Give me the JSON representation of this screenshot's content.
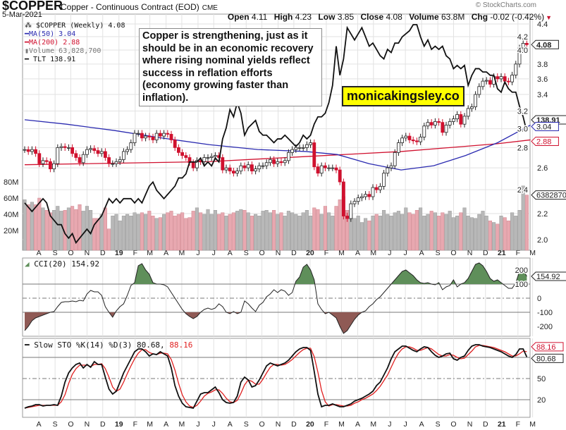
{
  "header": {
    "symbol": "$COPPER",
    "description": "Copper - Continuous Contract (EOD)",
    "exchange": "CME",
    "date": "5-Mar-2021",
    "open_label": "Open",
    "open": "4.11",
    "high_label": "High",
    "high": "4.23",
    "low_label": "Low",
    "low": "3.85",
    "close_label": "Close",
    "close": "4.08",
    "volume_label": "Volume",
    "volume": "63.8M",
    "chg_label": "Chg",
    "chg": "-0.02 (-0.42%)",
    "watermark": "© StockCharts.com"
  },
  "legend": {
    "main": "$COPPER (Weekly) 4.08",
    "ma50": "MA(50) 3.04",
    "ma200": "MA(200) 2.88",
    "volume": "Volume 63,828,700",
    "tlt": "TLT 138.91",
    "cci": "CCI(20) 154.92",
    "sto": "Slow STO %K(14) %D(3) 80.68,",
    "sto_d": "88.16"
  },
  "annotation": "Copper is strengthening, just as it should be in an economic recovery where rising nominal yields reflect success in reflation efforts (economy growing faster than inflation).",
  "logo": "monicakingsley.co",
  "colors": {
    "up": "#ffffff",
    "down": "#d0102e",
    "ma50": "#2a2ab0",
    "ma200": "#d0102e",
    "tlt": "#111111",
    "vol_up": "#b8b8b8",
    "vol_down": "#e8a8b0",
    "cci_pos": "#5f8f5a",
    "cci_neg": "#8f5a55",
    "sto_d": "#e02020"
  },
  "chart_data": {
    "type": "candlestick",
    "frequency": "weekly",
    "first_week": "2018-07-13",
    "last_week": "2021-03-05",
    "x_ticks": [
      "A",
      "S",
      "O",
      "N",
      "D",
      "19",
      "F",
      "M",
      "A",
      "M",
      "J",
      "J",
      "A",
      "S",
      "O",
      "N",
      "D",
      "20",
      "F",
      "M",
      "A",
      "M",
      "J",
      "J",
      "A",
      "S",
      "O",
      "N",
      "D",
      "21",
      "F",
      "M"
    ],
    "price_axis": {
      "scale": "log",
      "ticks": [
        "4.4",
        "4.2",
        "4.0",
        "3.8",
        "3.6",
        "3.4",
        "3.2",
        "3.0",
        "2.8",
        "2.6",
        "2.4",
        "2.2",
        "2.0"
      ],
      "range": [
        2.0,
        4.4
      ]
    },
    "volume_axis": {
      "ticks": [
        "80M",
        "60M",
        "40M",
        "20M"
      ]
    },
    "tags": {
      "close": "4.08",
      "tlt": "138.91",
      "ma50": "3.04",
      "ma200": "2.88",
      "volume": "63828700",
      "cci": "154.92",
      "sto_d": "88.16",
      "sto_k": "80.68"
    },
    "close": [
      2.78,
      2.76,
      2.78,
      2.74,
      2.64,
      2.67,
      2.66,
      2.59,
      2.64,
      2.8,
      2.81,
      2.8,
      2.8,
      2.74,
      2.7,
      2.65,
      2.73,
      2.78,
      2.79,
      2.77,
      2.74,
      2.76,
      2.7,
      2.64,
      2.64,
      2.66,
      2.68,
      2.76,
      2.78,
      2.85,
      2.95,
      2.95,
      2.9,
      2.92,
      2.91,
      2.88,
      2.95,
      2.92,
      2.95,
      2.94,
      2.88,
      2.8,
      2.75,
      2.72,
      2.7,
      2.65,
      2.6,
      2.67,
      2.66,
      2.7,
      2.7,
      2.71,
      2.72,
      2.7,
      2.58,
      2.6,
      2.57,
      2.55,
      2.57,
      2.62,
      2.6,
      2.63,
      2.57,
      2.59,
      2.62,
      2.62,
      2.65,
      2.68,
      2.64,
      2.66,
      2.65,
      2.67,
      2.75,
      2.78,
      2.8,
      2.8,
      2.8,
      2.83,
      2.85,
      2.61,
      2.55,
      2.62,
      2.6,
      2.6,
      2.6,
      2.58,
      2.47,
      2.18,
      2.16,
      2.28,
      2.3,
      2.33,
      2.34,
      2.36,
      2.34,
      2.42,
      2.4,
      2.43,
      2.55,
      2.6,
      2.62,
      2.75,
      2.85,
      2.9,
      2.92,
      2.88,
      2.87,
      2.86,
      2.91,
      3.03,
      3.07,
      3.04,
      3.08,
      3.07,
      2.96,
      3.04,
      3.08,
      3.11,
      3.16,
      3.05,
      3.14,
      3.23,
      3.25,
      3.4,
      3.5,
      3.57,
      3.58,
      3.53,
      3.63,
      3.6,
      3.63,
      3.57,
      3.56,
      3.65,
      3.8,
      4.03,
      4.1,
      4.08
    ],
    "volume_millions": [
      58,
      52,
      55,
      52,
      60,
      48,
      45,
      42,
      45,
      50,
      44,
      45,
      48,
      50,
      46,
      52,
      44,
      50,
      45,
      35,
      35,
      40,
      48,
      22,
      38,
      40,
      32,
      38,
      40,
      38,
      42,
      40,
      42,
      40,
      44,
      38,
      35,
      36,
      40,
      42,
      44,
      38,
      40,
      42,
      35,
      36,
      44,
      48,
      42,
      40,
      46,
      40,
      45,
      40,
      42,
      38,
      40,
      42,
      44,
      46,
      45,
      42,
      38,
      40,
      38,
      44,
      45,
      42,
      45,
      40,
      42,
      38,
      44,
      42,
      40,
      38,
      42,
      45,
      38,
      48,
      46,
      40,
      50,
      42,
      38,
      50,
      58,
      62,
      45,
      40,
      35,
      38,
      30,
      35,
      32,
      38,
      40,
      38,
      45,
      40,
      38,
      42,
      44,
      40,
      48,
      42,
      40,
      45,
      48,
      38,
      40,
      44,
      42,
      38,
      42,
      40,
      44,
      36,
      38,
      42,
      48,
      38,
      36,
      35,
      40,
      44,
      38,
      32,
      30,
      28,
      38,
      36,
      32,
      42,
      38,
      45,
      75,
      63.8
    ],
    "ma50": [
      [
        "2018-07-13",
        3.1
      ],
      [
        "2018-10-01",
        3.05
      ],
      [
        "2019-01-01",
        2.98
      ],
      [
        "2019-04-01",
        2.9
      ],
      [
        "2019-07-01",
        2.83
      ],
      [
        "2019-10-01",
        2.78
      ],
      [
        "2020-01-01",
        2.76
      ],
      [
        "2020-03-01",
        2.73
      ],
      [
        "2020-05-01",
        2.64
      ],
      [
        "2020-07-01",
        2.58
      ],
      [
        "2020-09-01",
        2.62
      ],
      [
        "2020-11-01",
        2.72
      ],
      [
        "2021-01-01",
        2.85
      ],
      [
        "2021-03-05",
        3.04
      ]
    ],
    "ma200": [
      [
        "2018-07-13",
        2.63
      ],
      [
        "2019-07-01",
        2.66
      ],
      [
        "2020-01-01",
        2.71
      ],
      [
        "2020-07-01",
        2.76
      ],
      [
        "2021-01-01",
        2.84
      ],
      [
        "2021-03-05",
        2.88
      ]
    ],
    "tlt": [
      121,
      120,
      119,
      120,
      121,
      122,
      121,
      118,
      117,
      116,
      116,
      114,
      113,
      114,
      112,
      113,
      114,
      115,
      114,
      116,
      117,
      118,
      120,
      122,
      121,
      122,
      121,
      122,
      122,
      122,
      121,
      122,
      121,
      123,
      125,
      126,
      124,
      123,
      122,
      123,
      124,
      125,
      127,
      127,
      128,
      131,
      131,
      131,
      132,
      130,
      131,
      130,
      132,
      131,
      137,
      140,
      145,
      143,
      147,
      144,
      138,
      140,
      141,
      142,
      139,
      138,
      138,
      137,
      136,
      137,
      137,
      138,
      137,
      136,
      135,
      136,
      138,
      137,
      138,
      141,
      143,
      143,
      144,
      147,
      152,
      164,
      155,
      160,
      170,
      168,
      166,
      168,
      170,
      167,
      164,
      165,
      163,
      161,
      160,
      163,
      162,
      165,
      165,
      167,
      168,
      169,
      171,
      171,
      167,
      164,
      166,
      163,
      164,
      163,
      164,
      161,
      160,
      157,
      158,
      157,
      158,
      152,
      155,
      157,
      157,
      156,
      156,
      155,
      155,
      151,
      150,
      153,
      151,
      150,
      150,
      146,
      143,
      138.91
    ],
    "cci": {
      "ticks": [
        "200",
        "100",
        "0",
        "-100",
        "-200"
      ],
      "values": [
        -230,
        -200,
        -160,
        -140,
        -130,
        -120,
        -110,
        -100,
        -95,
        -60,
        -30,
        -25,
        -25,
        -20,
        -25,
        -15,
        -20,
        30,
        55,
        45,
        45,
        20,
        -60,
        -100,
        -135,
        -90,
        -60,
        -40,
        20,
        90,
        110,
        230,
        245,
        200,
        170,
        110,
        100,
        100,
        95,
        80,
        40,
        0,
        -40,
        -80,
        -110,
        -130,
        -145,
        -130,
        -100,
        -80,
        -70,
        -80,
        -70,
        -40,
        -60,
        -100,
        -110,
        -95,
        -110,
        -100,
        -20,
        -40,
        -70,
        -95,
        -50,
        -30,
        10,
        30,
        60,
        40,
        60,
        50,
        20,
        40,
        120,
        150,
        220,
        240,
        200,
        130,
        -40,
        -80,
        -110,
        -100,
        -120,
        -140,
        -200,
        -250,
        -230,
        -190,
        -150,
        -120,
        -100,
        -90,
        -60,
        -40,
        -10,
        10,
        40,
        70,
        100,
        130,
        160,
        190,
        200,
        180,
        160,
        130,
        110,
        105,
        110,
        100,
        95,
        110,
        60,
        80,
        90,
        130,
        80,
        100,
        110,
        140,
        190,
        240,
        250,
        230,
        190,
        140,
        120,
        130,
        110,
        90,
        70,
        70,
        110,
        190,
        200,
        154.92
      ]
    },
    "sto": {
      "ticks": [
        "80",
        "50",
        "20"
      ],
      "k": [
        8,
        10,
        11,
        13,
        13,
        11,
        12,
        12,
        13,
        12,
        25,
        45,
        58,
        65,
        70,
        72,
        65,
        70,
        66,
        74,
        70,
        70,
        52,
        35,
        28,
        32,
        45,
        58,
        68,
        78,
        88,
        92,
        92,
        88,
        82,
        85,
        84,
        88,
        85,
        82,
        65,
        40,
        25,
        15,
        10,
        9,
        8,
        18,
        28,
        30,
        30,
        34,
        38,
        30,
        20,
        16,
        15,
        16,
        25,
        45,
        52,
        48,
        38,
        40,
        48,
        58,
        68,
        72,
        70,
        68,
        70,
        72,
        76,
        82,
        88,
        92,
        94,
        94,
        90,
        60,
        28,
        10,
        12,
        12,
        14,
        12,
        10,
        10,
        12,
        14,
        18,
        20,
        22,
        25,
        28,
        32,
        40,
        45,
        55,
        65,
        78,
        88,
        92,
        96,
        96,
        93,
        90,
        88,
        92,
        95,
        94,
        88,
        83,
        80,
        82,
        85,
        86,
        78,
        76,
        80,
        82,
        90,
        96,
        98,
        98,
        96,
        95,
        94,
        92,
        90,
        88,
        85,
        82,
        80,
        84,
        92,
        92,
        80.68
      ],
      "d": [
        8,
        9,
        10,
        11,
        12,
        12,
        12,
        12,
        12,
        12,
        17,
        27,
        43,
        56,
        64,
        69,
        69,
        69,
        67,
        70,
        70,
        71,
        64,
        52,
        38,
        32,
        35,
        45,
        57,
        68,
        78,
        86,
        91,
        91,
        87,
        85,
        84,
        86,
        86,
        85,
        77,
        62,
        43,
        27,
        17,
        11,
        9,
        12,
        18,
        25,
        29,
        31,
        34,
        34,
        29,
        22,
        17,
        16,
        19,
        29,
        41,
        48,
        46,
        42,
        42,
        49,
        58,
        66,
        70,
        70,
        69,
        70,
        73,
        77,
        82,
        87,
        91,
        93,
        93,
        81,
        59,
        33,
        17,
        11,
        13,
        13,
        12,
        11,
        11,
        12,
        15,
        17,
        20,
        22,
        25,
        28,
        33,
        39,
        47,
        55,
        66,
        77,
        86,
        92,
        95,
        95,
        93,
        90,
        90,
        92,
        94,
        92,
        88,
        84,
        82,
        82,
        84,
        83,
        80,
        78,
        79,
        84,
        89,
        95,
        97,
        97,
        96,
        95,
        94,
        92,
        90,
        88,
        85,
        82,
        82,
        85,
        89,
        88.16
      ]
    }
  }
}
